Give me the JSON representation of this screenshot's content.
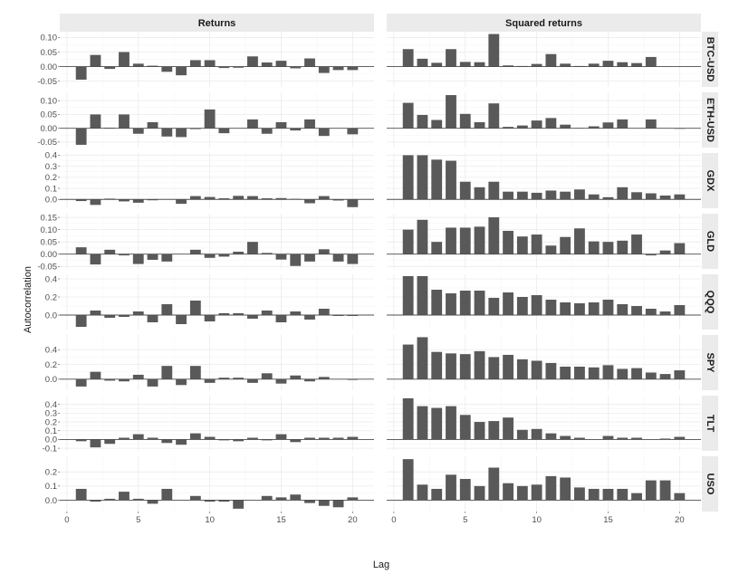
{
  "chart_data": {
    "type": "bar",
    "xlabel": "Lag",
    "ylabel": "Autocorrelation",
    "columns": [
      "Returns",
      "Squared returns"
    ],
    "x_ticks": [
      0,
      5,
      10,
      15,
      20
    ],
    "xlim": [
      -0.5,
      21.5
    ],
    "grid": true,
    "colors": {
      "bar": "#595959",
      "zero_line": "#4d4d4d",
      "strip_bg": "#ebebeb",
      "grid": "#ebebeb"
    },
    "panels": [
      {
        "asset": "BTC-USD",
        "ylim": [
          -0.07,
          0.12
        ],
        "ticks": [
          -0.05,
          0.0,
          0.05,
          0.1
        ],
        "tick_labels": [
          "-0.05",
          "0.00",
          "0.05",
          "0.10"
        ],
        "returns": [
          -0.045,
          0.04,
          -0.008,
          0.05,
          0.01,
          0.003,
          -0.018,
          -0.03,
          0.022,
          0.022,
          -0.005,
          -0.004,
          0.035,
          0.014,
          0.02,
          -0.006,
          0.028,
          -0.022,
          -0.012,
          -0.012
        ],
        "squared": [
          0.06,
          0.027,
          0.013,
          0.06,
          0.016,
          0.015,
          0.112,
          0.004,
          0.002,
          0.009,
          0.043,
          0.01,
          0.002,
          0.01,
          0.02,
          0.015,
          0.012,
          0.033,
          0.0,
          0.0
        ]
      },
      {
        "asset": "ETH-USD",
        "ylim": [
          -0.07,
          0.13
        ],
        "ticks": [
          -0.05,
          0.0,
          0.05,
          0.1
        ],
        "tick_labels": [
          "-0.05",
          "0.00",
          "0.05",
          "0.10"
        ],
        "returns": [
          -0.06,
          0.05,
          0.002,
          0.05,
          -0.02,
          0.022,
          -0.03,
          -0.032,
          -0.003,
          0.068,
          -0.018,
          0.0,
          0.032,
          -0.02,
          0.022,
          -0.008,
          0.032,
          -0.028,
          0.0,
          -0.022
        ],
        "squared": [
          0.092,
          0.048,
          0.03,
          0.12,
          0.052,
          0.022,
          0.09,
          0.005,
          0.01,
          0.028,
          0.037,
          0.013,
          0.001,
          0.007,
          0.021,
          0.032,
          0.0,
          0.032,
          0.0,
          -0.002
        ]
      },
      {
        "asset": "GDX",
        "ylim": [
          -0.08,
          0.42
        ],
        "ticks": [
          0.0,
          0.1,
          0.2,
          0.3,
          0.4
        ],
        "tick_labels": [
          "0.0",
          "0.1",
          "0.2",
          "0.3",
          "0.4"
        ],
        "returns": [
          -0.015,
          -0.05,
          0.007,
          -0.018,
          -0.03,
          -0.008,
          0.0,
          -0.04,
          0.03,
          0.022,
          0.01,
          0.032,
          0.03,
          0.01,
          0.012,
          0.005,
          -0.035,
          0.03,
          -0.01,
          -0.07
        ],
        "squared": [
          0.4,
          0.4,
          0.36,
          0.35,
          0.16,
          0.11,
          0.16,
          0.07,
          0.07,
          0.06,
          0.08,
          0.07,
          0.09,
          0.045,
          0.02,
          0.11,
          0.065,
          0.055,
          0.035,
          0.045
        ]
      },
      {
        "asset": "GLD",
        "ylim": [
          -0.06,
          0.165
        ],
        "ticks": [
          -0.05,
          0.0,
          0.05,
          0.1,
          0.15
        ],
        "tick_labels": [
          "-0.05",
          "0.00",
          "0.05",
          "0.10",
          "0.15"
        ],
        "returns": [
          0.028,
          -0.042,
          0.018,
          -0.005,
          -0.04,
          -0.023,
          -0.03,
          0.0,
          0.018,
          -0.015,
          -0.01,
          0.01,
          0.05,
          0.005,
          -0.022,
          -0.048,
          -0.03,
          0.02,
          -0.03,
          -0.04
        ],
        "squared": [
          0.1,
          0.14,
          0.05,
          0.108,
          0.108,
          0.112,
          0.15,
          0.095,
          0.072,
          0.08,
          0.035,
          0.07,
          0.105,
          0.052,
          0.05,
          0.055,
          0.08,
          -0.005,
          0.015,
          0.045
        ]
      },
      {
        "asset": "QQQ",
        "ylim": [
          -0.16,
          0.45
        ],
        "ticks": [
          0.0,
          0.2,
          0.4
        ],
        "tick_labels": [
          "0.0",
          "0.2",
          "0.4"
        ],
        "returns": [
          -0.13,
          0.05,
          -0.03,
          -0.02,
          0.04,
          -0.08,
          0.12,
          -0.1,
          0.16,
          -0.07,
          0.02,
          0.02,
          -0.04,
          0.05,
          -0.08,
          0.04,
          -0.05,
          0.07,
          -0.01,
          -0.01
        ],
        "squared": [
          0.43,
          0.43,
          0.28,
          0.24,
          0.27,
          0.27,
          0.19,
          0.25,
          0.2,
          0.22,
          0.17,
          0.14,
          0.13,
          0.14,
          0.17,
          0.12,
          0.1,
          0.07,
          0.04,
          0.11
        ]
      },
      {
        "asset": "SPY",
        "ylim": [
          -0.15,
          0.6
        ],
        "ticks": [
          0.0,
          0.2,
          0.4
        ],
        "tick_labels": [
          "0.0",
          "0.2",
          "0.4"
        ],
        "returns": [
          -0.1,
          0.1,
          -0.02,
          -0.03,
          0.06,
          -0.1,
          0.18,
          -0.08,
          0.18,
          -0.05,
          0.02,
          0.02,
          -0.05,
          0.08,
          -0.06,
          0.05,
          -0.03,
          0.03,
          0.0,
          -0.01
        ],
        "squared": [
          0.47,
          0.57,
          0.37,
          0.35,
          0.34,
          0.38,
          0.3,
          0.33,
          0.27,
          0.25,
          0.22,
          0.17,
          0.17,
          0.16,
          0.19,
          0.14,
          0.15,
          0.09,
          0.07,
          0.12
        ]
      },
      {
        "asset": "TLT",
        "ylim": [
          -0.13,
          0.5
        ],
        "ticks": [
          -0.1,
          0.0,
          0.1,
          0.2,
          0.3,
          0.4
        ],
        "tick_labels": [
          "-0.1",
          "0.0",
          "0.1",
          "0.2",
          "0.3",
          "0.4"
        ],
        "returns": [
          -0.02,
          -0.09,
          -0.05,
          0.02,
          0.06,
          0.02,
          -0.04,
          -0.06,
          0.07,
          0.03,
          -0.01,
          -0.02,
          0.02,
          -0.01,
          0.06,
          -0.03,
          0.02,
          0.02,
          0.02,
          0.03
        ],
        "squared": [
          0.47,
          0.38,
          0.36,
          0.38,
          0.28,
          0.2,
          0.21,
          0.25,
          0.11,
          0.12,
          0.07,
          0.04,
          0.02,
          0.0,
          0.04,
          0.02,
          0.02,
          0.0,
          0.01,
          0.03
        ]
      },
      {
        "asset": "USO",
        "ylim": [
          -0.08,
          0.31
        ],
        "ticks": [
          0.0,
          0.1,
          0.2
        ],
        "tick_labels": [
          "0.0",
          "0.1",
          "0.2"
        ],
        "returns": [
          0.08,
          -0.01,
          0.01,
          0.06,
          0.01,
          -0.025,
          0.08,
          0.0,
          0.03,
          -0.01,
          -0.01,
          -0.06,
          0.0,
          0.03,
          0.02,
          0.04,
          -0.02,
          -0.04,
          -0.05,
          0.02
        ],
        "squared": [
          0.29,
          0.11,
          0.08,
          0.18,
          0.15,
          0.1,
          0.23,
          0.12,
          0.1,
          0.11,
          0.17,
          0.16,
          0.09,
          0.08,
          0.08,
          0.08,
          0.05,
          0.14,
          0.14,
          0.05
        ]
      }
    ]
  }
}
